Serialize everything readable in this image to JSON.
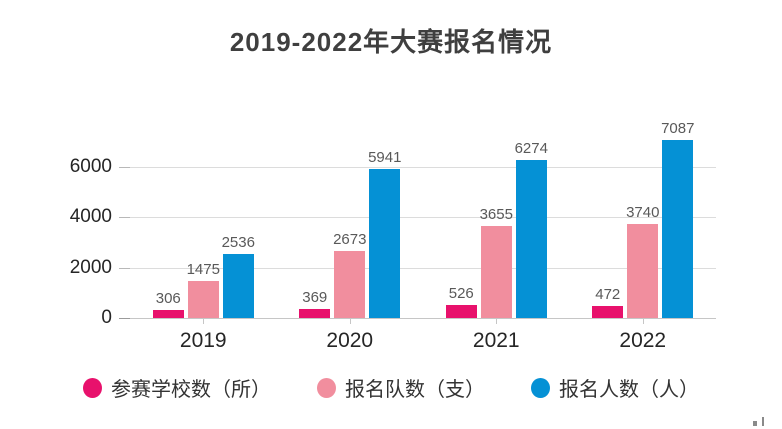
{
  "title": "2019-2022年大赛报名情况",
  "chart_data": {
    "type": "bar",
    "title": "2019-2022年大赛报名情况",
    "categories": [
      "2019",
      "2020",
      "2021",
      "2022"
    ],
    "series": [
      {
        "name": "参赛学校数（所）",
        "color": "#e8116c",
        "values": [
          306,
          369,
          526,
          472
        ]
      },
      {
        "name": "报名队数（支）",
        "color": "#f18e9e",
        "values": [
          1475,
          2673,
          3655,
          3740
        ]
      },
      {
        "name": "报名人数（人）",
        "color": "#0591d5",
        "values": [
          2536,
          5941,
          6274,
          7087
        ]
      }
    ],
    "xlabel": "",
    "ylabel": "",
    "y_ticks": [
      0,
      2000,
      4000,
      6000
    ],
    "ylim": [
      0,
      7200
    ],
    "grid": true,
    "value_labels": true,
    "legend_position": "bottom",
    "colors": {
      "title_text": "#3f3f3f",
      "axis_text": "#262626",
      "value_label_text": "#595959",
      "gridline": "#dcdcdc",
      "background": "#ffffff"
    }
  }
}
